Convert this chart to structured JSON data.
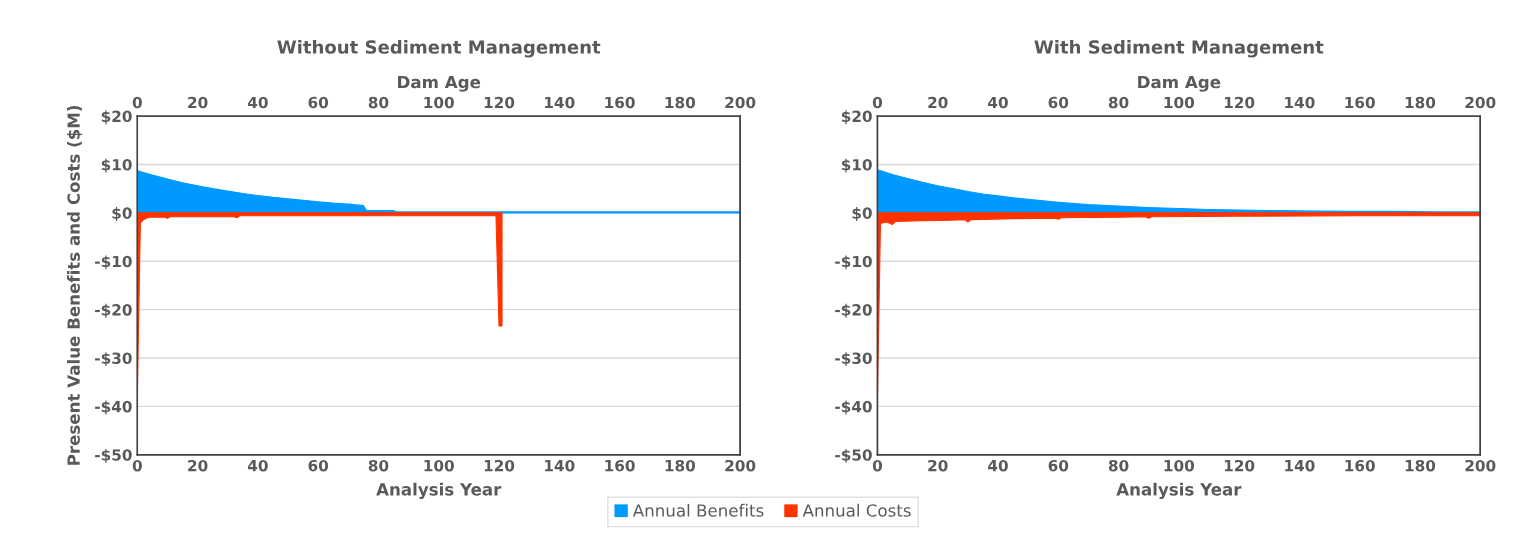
{
  "chart_data": [
    {
      "type": "area",
      "title": "Without Sediment Management",
      "xlabel": "Analysis Year",
      "x2label": "Dam Age",
      "ylabel": "Present Value Benefits and Costs ($M)",
      "series": [
        {
          "name": "Annual Benefits",
          "color": "#0099ff",
          "x": [
            0,
            5,
            10,
            15,
            20,
            25,
            30,
            35,
            40,
            45,
            50,
            55,
            60,
            65,
            70,
            75,
            76,
            85,
            86,
            200
          ],
          "values": [
            8.7,
            7.8,
            7.0,
            6.2,
            5.6,
            5.0,
            4.5,
            4.0,
            3.6,
            3.2,
            2.9,
            2.6,
            2.3,
            2.0,
            1.8,
            1.5,
            0.5,
            0.5,
            0.2,
            0.2
          ]
        },
        {
          "name": "Annual Costs",
          "color": "#ff3300",
          "x": [
            0,
            1,
            2,
            3,
            4,
            9,
            10,
            11,
            32,
            33,
            34,
            119,
            120,
            121
          ],
          "values": [
            -37.5,
            -2.1,
            -1.4,
            -1.1,
            -0.9,
            -0.9,
            -1.1,
            -0.8,
            -0.8,
            -1.0,
            -0.6,
            -0.6,
            -23.4,
            -23.4
          ]
        }
      ],
      "xlim": [
        0,
        200
      ],
      "xticks": [
        0,
        20,
        40,
        60,
        80,
        100,
        120,
        140,
        160,
        180,
        200
      ],
      "x2lim": [
        0,
        200
      ],
      "x2ticks": [
        0,
        20,
        40,
        60,
        80,
        100,
        120,
        140,
        160,
        180,
        200
      ],
      "ylim": [
        -50,
        20
      ],
      "yticks": [
        {
          "value": 20,
          "label": "$20"
        },
        {
          "value": 10,
          "label": "$10"
        },
        {
          "value": 0,
          "label": "$0"
        },
        {
          "value": -10,
          "label": "-$10"
        },
        {
          "value": -20,
          "label": "-$20"
        },
        {
          "value": -30,
          "label": "-$30"
        },
        {
          "value": -40,
          "label": "-$40"
        },
        {
          "value": -50,
          "label": "-$50"
        }
      ],
      "grid": "y",
      "legend": "bottom"
    },
    {
      "type": "area",
      "title": "With Sediment Management",
      "xlabel": "Analysis Year",
      "x2label": "Dam Age",
      "series": [
        {
          "color": "#0099ff",
          "x": [
            0,
            5,
            10,
            15,
            20,
            25,
            30,
            35,
            40,
            45,
            50,
            60,
            70,
            80,
            90,
            100,
            110,
            120,
            130,
            140,
            155,
            170,
            185,
            200
          ],
          "values": [
            8.9,
            7.9,
            7.1,
            6.3,
            5.6,
            5.0,
            4.4,
            3.9,
            3.5,
            3.1,
            2.8,
            2.2,
            1.7,
            1.4,
            1.1,
            0.9,
            0.7,
            0.6,
            0.5,
            0.4,
            0.3,
            0.3,
            0.2,
            0.2
          ]
        },
        {
          "color": "#ff3300",
          "x": [
            0,
            1,
            3,
            5,
            6,
            15,
            25,
            29,
            30,
            31,
            45,
            59,
            60,
            61,
            80,
            89,
            90,
            91,
            120,
            160,
            200
          ],
          "values": [
            -38.0,
            -2.2,
            -1.9,
            -2.4,
            -1.8,
            -1.6,
            -1.5,
            -1.4,
            -1.9,
            -1.4,
            -1.2,
            -1.1,
            -1.3,
            -1.0,
            -0.9,
            -0.8,
            -1.1,
            -0.8,
            -0.7,
            -0.6,
            -0.6
          ]
        }
      ],
      "xlim": [
        0,
        200
      ],
      "xticks": [
        0,
        20,
        40,
        60,
        80,
        100,
        120,
        140,
        160,
        180,
        200
      ],
      "x2lim": [
        0,
        200
      ],
      "x2ticks": [
        0,
        20,
        40,
        60,
        80,
        100,
        120,
        140,
        160,
        180,
        200
      ],
      "ylim": [
        -50,
        20
      ],
      "yticks": [
        {
          "value": 20,
          "label": "$20"
        },
        {
          "value": 10,
          "label": "$10"
        },
        {
          "value": 0,
          "label": "$0"
        },
        {
          "value": -10,
          "label": "-$10"
        },
        {
          "value": -20,
          "label": "-$20"
        },
        {
          "value": -30,
          "label": "-$30"
        },
        {
          "value": -40,
          "label": "-$40"
        },
        {
          "value": -50,
          "label": "-$50"
        }
      ],
      "grid": "y"
    }
  ]
}
